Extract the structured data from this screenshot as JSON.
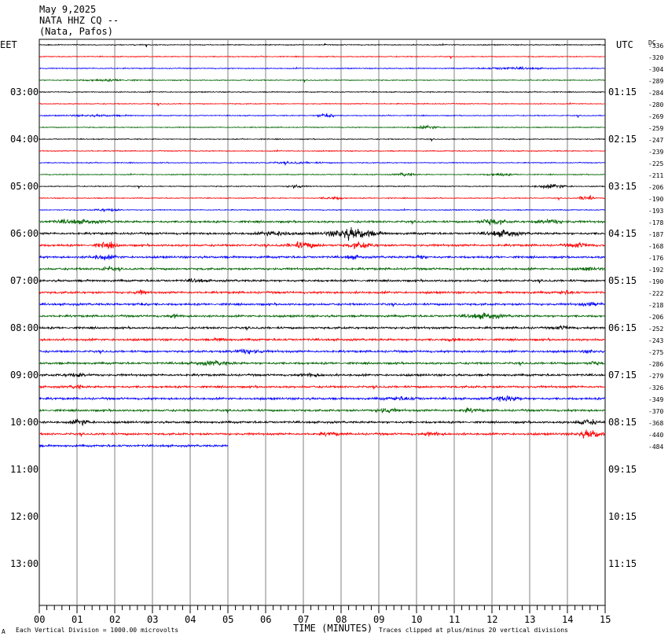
{
  "header": {
    "date": "May 9,2025",
    "station": "NATA HHZ CQ --",
    "location": "(Nata, Pafos)"
  },
  "corner": {
    "left_tz": "EET",
    "right_tz": "UTC",
    "dc": "DC"
  },
  "footer": {
    "left_mark": "A",
    "scale_note": "Each Vertical Division = 1000.00 microvolts",
    "xlabel": "TIME (MINUTES)",
    "clip_note": "Traces clipped at plus/minus 20 vertical divisions"
  },
  "colors": {
    "trace_cycle": [
      "#000000",
      "#ff0000",
      "#0000ff",
      "#006400"
    ],
    "grid": "#808080"
  },
  "chart_data": {
    "type": "line",
    "xlim": [
      0,
      15
    ],
    "x_ticks": [
      "00",
      "01",
      "02",
      "03",
      "04",
      "05",
      "06",
      "07",
      "08",
      "09",
      "10",
      "11",
      "12",
      "13",
      "14",
      "15"
    ],
    "left_hour_labels": [
      "03:00",
      "04:00",
      "05:00",
      "06:00",
      "07:00",
      "08:00",
      "09:00",
      "10:00",
      "11:00",
      "12:00",
      "13:00"
    ],
    "right_hour_labels": [
      "01:15",
      "02:15",
      "03:15",
      "04:15",
      "05:15",
      "06:15",
      "07:15",
      "08:15",
      "09:15",
      "10:15",
      "11:15"
    ],
    "dc_offsets": [
      -336,
      -320,
      -304,
      -289,
      -284,
      -280,
      -269,
      -259,
      -247,
      -239,
      -225,
      -211,
      -206,
      -190,
      -193,
      -178,
      -187,
      -168,
      -176,
      -192,
      -190,
      -222,
      -218,
      -206,
      -252,
      -243,
      -275,
      -286,
      -279,
      -326,
      -349,
      -370,
      -368,
      -440,
      -484
    ],
    "last_trace_end_minute": 5,
    "events": [
      {
        "trace": 2,
        "minute": 12.5,
        "amp": 0.4,
        "width": 1.5
      },
      {
        "trace": 3,
        "minute": 1.8,
        "amp": 0.35,
        "width": 1.2
      },
      {
        "trace": 6,
        "minute": 1.5,
        "amp": 0.3,
        "width": 1.5
      },
      {
        "trace": 6,
        "minute": 7.6,
        "amp": 1.4,
        "width": 0.35
      },
      {
        "trace": 7,
        "minute": 10.3,
        "amp": 0.6,
        "width": 0.6
      },
      {
        "trace": 10,
        "minute": 6.8,
        "amp": 0.3,
        "width": 1.5
      },
      {
        "trace": 11,
        "minute": 9.7,
        "amp": 0.6,
        "width": 0.5
      },
      {
        "trace": 11,
        "minute": 12.2,
        "amp": 0.6,
        "width": 0.6
      },
      {
        "trace": 12,
        "minute": 6.8,
        "amp": 0.6,
        "width": 0.4
      },
      {
        "trace": 12,
        "minute": 13.6,
        "amp": 0.8,
        "width": 0.8
      },
      {
        "trace": 13,
        "minute": 7.8,
        "amp": 0.6,
        "width": 0.5
      },
      {
        "trace": 13,
        "minute": 14.5,
        "amp": 1.4,
        "width": 0.3
      },
      {
        "trace": 14,
        "minute": 1.8,
        "amp": 0.5,
        "width": 0.6
      },
      {
        "trace": 15,
        "minute": 1.0,
        "amp": 0.7,
        "width": 1.2
      },
      {
        "trace": 15,
        "minute": 12.0,
        "amp": 1.1,
        "width": 0.6
      },
      {
        "trace": 15,
        "minute": 13.5,
        "amp": 0.9,
        "width": 0.6
      },
      {
        "trace": 16,
        "minute": 8.3,
        "amp": 2.2,
        "width": 1.1
      },
      {
        "trace": 16,
        "minute": 6.3,
        "amp": 0.9,
        "width": 0.8
      },
      {
        "trace": 16,
        "minute": 12.3,
        "amp": 1.2,
        "width": 0.8
      },
      {
        "trace": 17,
        "minute": 1.8,
        "amp": 1.2,
        "width": 0.5
      },
      {
        "trace": 17,
        "minute": 7.0,
        "amp": 1.3,
        "width": 0.7
      },
      {
        "trace": 17,
        "minute": 8.5,
        "amp": 1.1,
        "width": 0.6
      },
      {
        "trace": 17,
        "minute": 14.3,
        "amp": 0.8,
        "width": 0.6
      },
      {
        "trace": 18,
        "minute": 1.7,
        "amp": 0.9,
        "width": 0.6
      },
      {
        "trace": 18,
        "minute": 8.3,
        "amp": 0.7,
        "width": 0.4
      },
      {
        "trace": 18,
        "minute": 10.1,
        "amp": 0.7,
        "width": 0.3
      },
      {
        "trace": 19,
        "minute": 1.8,
        "amp": 0.7,
        "width": 0.4
      },
      {
        "trace": 19,
        "minute": 14.6,
        "amp": 0.5,
        "width": 0.5
      },
      {
        "trace": 20,
        "minute": 4.2,
        "amp": 0.5,
        "width": 0.5
      },
      {
        "trace": 21,
        "minute": 2.7,
        "amp": 0.7,
        "width": 0.3
      },
      {
        "trace": 21,
        "minute": 14.0,
        "amp": 0.6,
        "width": 0.4
      },
      {
        "trace": 22,
        "minute": 2.7,
        "amp": 0.6,
        "width": 0.3
      },
      {
        "trace": 22,
        "minute": 14.6,
        "amp": 0.6,
        "width": 0.6
      },
      {
        "trace": 23,
        "minute": 11.8,
        "amp": 1.0,
        "width": 0.9
      },
      {
        "trace": 23,
        "minute": 3.6,
        "amp": 0.6,
        "width": 0.3
      },
      {
        "trace": 24,
        "minute": 13.9,
        "amp": 0.7,
        "width": 0.4
      },
      {
        "trace": 25,
        "minute": 4.8,
        "amp": 0.6,
        "width": 0.3
      },
      {
        "trace": 25,
        "minute": 11.0,
        "amp": 0.7,
        "width": 0.3
      },
      {
        "trace": 26,
        "minute": 5.5,
        "amp": 0.8,
        "width": 0.7
      },
      {
        "trace": 26,
        "minute": 14.6,
        "amp": 0.5,
        "width": 0.3
      },
      {
        "trace": 27,
        "minute": 4.6,
        "amp": 0.7,
        "width": 0.9
      },
      {
        "trace": 27,
        "minute": 14.7,
        "amp": 0.6,
        "width": 0.3
      },
      {
        "trace": 28,
        "minute": 1.0,
        "amp": 0.6,
        "width": 0.6
      },
      {
        "trace": 28,
        "minute": 7.2,
        "amp": 0.5,
        "width": 0.6
      },
      {
        "trace": 29,
        "minute": 1.0,
        "amp": 0.6,
        "width": 0.3
      },
      {
        "trace": 30,
        "minute": 12.4,
        "amp": 0.9,
        "width": 0.7
      },
      {
        "trace": 30,
        "minute": 9.6,
        "amp": 0.6,
        "width": 0.8
      },
      {
        "trace": 31,
        "minute": 9.2,
        "amp": 0.9,
        "width": 0.5
      },
      {
        "trace": 31,
        "minute": 11.4,
        "amp": 0.6,
        "width": 0.6
      },
      {
        "trace": 32,
        "minute": 1.1,
        "amp": 1.1,
        "width": 0.5
      },
      {
        "trace": 32,
        "minute": 14.5,
        "amp": 0.9,
        "width": 0.6
      },
      {
        "trace": 33,
        "minute": 14.6,
        "amp": 1.6,
        "width": 0.6
      },
      {
        "trace": 33,
        "minute": 10.4,
        "amp": 0.7,
        "width": 0.4
      },
      {
        "trace": 33,
        "minute": 7.7,
        "amp": 0.5,
        "width": 0.6
      }
    ]
  }
}
